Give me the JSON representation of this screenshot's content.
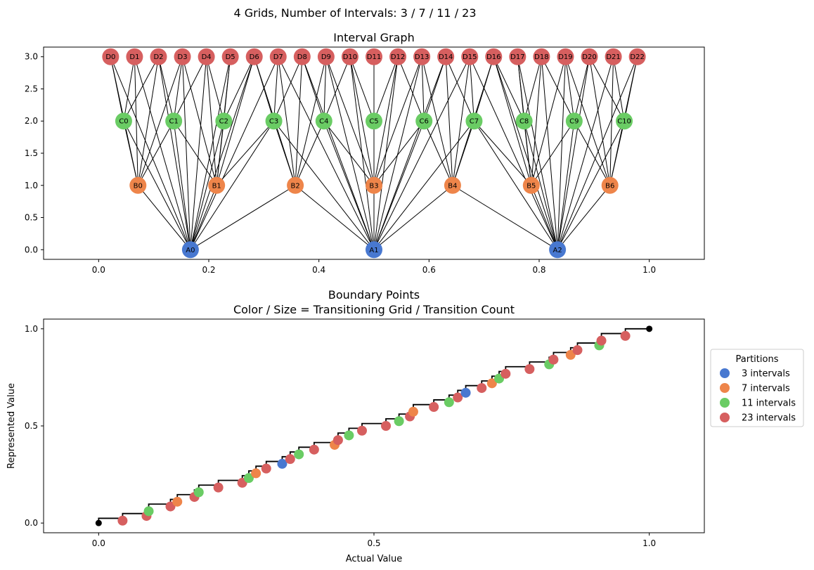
{
  "figure": {
    "suptitle": "4 Grids, Number of Intervals: 3 / 7 / 11 / 23"
  },
  "colors": {
    "grid3": "#4878d0",
    "grid7": "#ee854a",
    "grid11": "#6acc64",
    "grid23": "#d65f5f",
    "edge": "#000000",
    "step": "#000000"
  },
  "chart_data": [
    {
      "type": "scatter",
      "subtype": "network",
      "title": "Interval Graph",
      "xlim": [
        -0.1,
        1.1
      ],
      "ylim": [
        -0.15,
        3.15
      ],
      "xticks": [
        "0.0",
        "0.2",
        "0.4",
        "0.6",
        "0.8",
        "1.0"
      ],
      "xtick_values": [
        0,
        0.2,
        0.4,
        0.6,
        0.8,
        1.0
      ],
      "yticks": [
        "0.0",
        "0.5",
        "1.0",
        "1.5",
        "2.0",
        "2.5",
        "3.0"
      ],
      "ytick_values": [
        0,
        0.5,
        1.0,
        1.5,
        2.0,
        2.5,
        3.0
      ],
      "grid": false,
      "levels": [
        {
          "prefix": "A",
          "y": 0,
          "intervals": 3,
          "color_key": "grid3"
        },
        {
          "prefix": "B",
          "y": 1,
          "intervals": 7,
          "color_key": "grid7"
        },
        {
          "prefix": "C",
          "y": 2,
          "intervals": 11,
          "color_key": "grid11"
        },
        {
          "prefix": "D",
          "y": 3,
          "intervals": 23,
          "color_key": "grid23"
        }
      ],
      "edges_rule": "each node connects to every node on other levels whose interval overlaps its own; node x = interval midpoint"
    },
    {
      "type": "scatter",
      "title": "Boundary Points",
      "subtitle": "Color / Size = Transitioning Grid / Transition Count",
      "xlabel": "Actual Value",
      "ylabel": "Represented Value",
      "xlim": [
        -0.1,
        1.1
      ],
      "ylim": [
        -0.05,
        1.05
      ],
      "xticks": [
        "0.0",
        "0.5",
        "1.0"
      ],
      "xtick_values": [
        0,
        0.5,
        1.0
      ],
      "yticks": [
        "0.0",
        "0.5",
        "1.0"
      ],
      "ytick_values": [
        0,
        0.5,
        1.0
      ],
      "grid": false,
      "legend": {
        "title": "Partitions",
        "placement": "outside-right",
        "entries": [
          {
            "label": "3 intervals",
            "color_key": "grid3"
          },
          {
            "label": "7 intervals",
            "color_key": "grid7"
          },
          {
            "label": "11 intervals",
            "color_key": "grid11"
          },
          {
            "label": "23 intervals",
            "color_key": "grid23"
          }
        ]
      },
      "series": [
        {
          "name": "3 intervals",
          "grid_intervals": 3,
          "color_key": "grid3",
          "note": "points at x = k/3, y = step midpoint"
        },
        {
          "name": "7 intervals",
          "grid_intervals": 7,
          "color_key": "grid7",
          "note": "points at x = k/7"
        },
        {
          "name": "11 intervals",
          "grid_intervals": 11,
          "color_key": "grid11",
          "note": "points at x = k/11"
        },
        {
          "name": "23 intervals",
          "grid_intervals": 23,
          "color_key": "grid23",
          "note": "points at x = k/23"
        }
      ],
      "step_endpoints": [
        [
          0,
          0
        ],
        [
          1,
          1
        ]
      ]
    }
  ]
}
